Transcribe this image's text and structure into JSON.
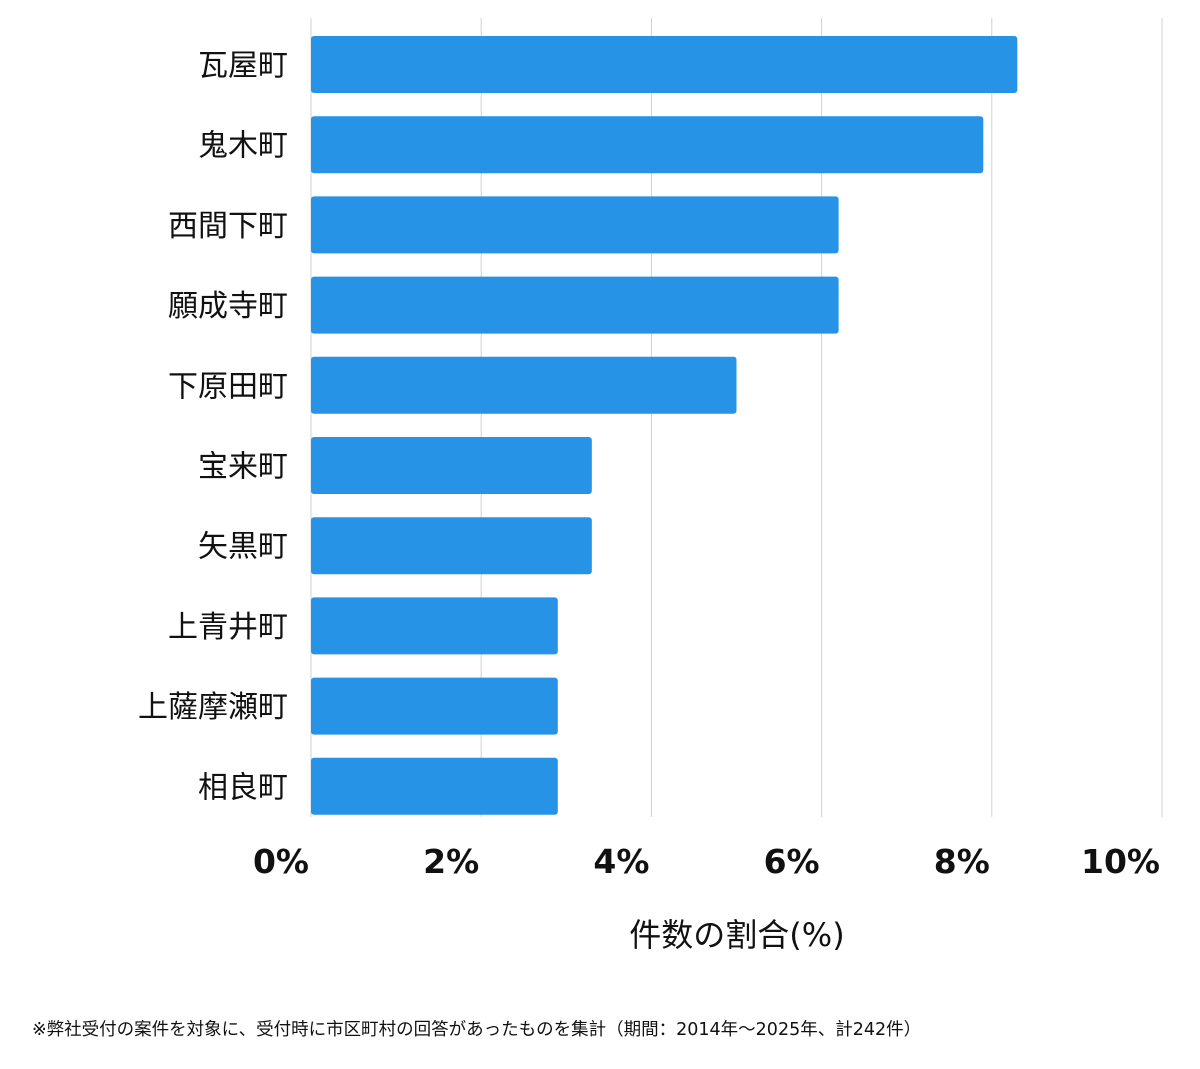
{
  "chart_data": {
    "type": "bar",
    "orientation": "horizontal",
    "categories": [
      "瓦屋町",
      "鬼木町",
      "西間下町",
      "願成寺町",
      "下原田町",
      "宝来町",
      "矢黒町",
      "上青井町",
      "上薩摩瀬町",
      "相良町"
    ],
    "values": [
      8.3,
      7.9,
      6.2,
      6.2,
      5.0,
      3.3,
      3.3,
      2.9,
      2.9,
      2.9
    ],
    "xlim": [
      0,
      10
    ],
    "xticks": [
      0,
      2,
      4,
      6,
      8,
      10
    ],
    "xtick_labels": [
      "0%",
      "2%",
      "4%",
      "6%",
      "8%",
      "10%"
    ],
    "xlabel": "件数の割合(%)",
    "title": "",
    "grid": true,
    "bar_color": "#2793E6",
    "grid_color": "#D0D0D0"
  },
  "footnote": "※弊社受付の案件を対象に、受付時に市区町村の回答があったものを集計（期間：2014年～2025年、計242件）"
}
